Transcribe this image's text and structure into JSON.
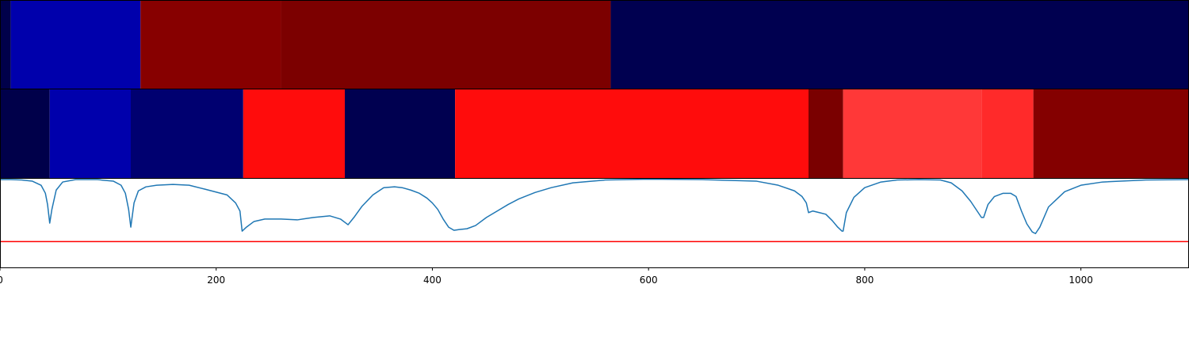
{
  "chart_data": [
    {
      "type": "heatmap",
      "xlim": [
        0,
        1100
      ],
      "segments": [
        {
          "start": 0,
          "end": 10,
          "color": "#00004a"
        },
        {
          "start": 10,
          "end": 130,
          "color": "#0000ac"
        },
        {
          "start": 130,
          "end": 260,
          "color": "#870000"
        },
        {
          "start": 260,
          "end": 565,
          "color": "#7c0000"
        },
        {
          "start": 565,
          "end": 1100,
          "color": "#000050"
        }
      ]
    },
    {
      "type": "heatmap",
      "xlim": [
        0,
        1100
      ],
      "segments": [
        {
          "start": 0,
          "end": 46,
          "color": "#00004a"
        },
        {
          "start": 46,
          "end": 121,
          "color": "#0000ac"
        },
        {
          "start": 121,
          "end": 225,
          "color": "#000070"
        },
        {
          "start": 225,
          "end": 319,
          "color": "#ff0c0c"
        },
        {
          "start": 319,
          "end": 421,
          "color": "#000050"
        },
        {
          "start": 421,
          "end": 748,
          "color": "#ff0c0c"
        },
        {
          "start": 748,
          "end": 780,
          "color": "#7a0000"
        },
        {
          "start": 780,
          "end": 908,
          "color": "#ff3838"
        },
        {
          "start": 908,
          "end": 956,
          "color": "#ff2a2a"
        },
        {
          "start": 956,
          "end": 1100,
          "color": "#840000"
        }
      ]
    },
    {
      "type": "line",
      "xlim": [
        0,
        1100
      ],
      "ylim": [
        -0.1,
        1.0
      ],
      "x": [
        0,
        10,
        20,
        30,
        38,
        42,
        44,
        46,
        48,
        52,
        58,
        70,
        90,
        105,
        112,
        116,
        119,
        121,
        124,
        128,
        135,
        145,
        160,
        175,
        190,
        210,
        218,
        222,
        224,
        228,
        235,
        245,
        260,
        275,
        290,
        305,
        315,
        322,
        328,
        335,
        345,
        355,
        365,
        372,
        380,
        388,
        395,
        400,
        405,
        410,
        415,
        420,
        425,
        432,
        440,
        450,
        460,
        470,
        480,
        495,
        510,
        530,
        560,
        600,
        650,
        700,
        720,
        735,
        742,
        746,
        748,
        752,
        758,
        764,
        770,
        775,
        779,
        780,
        783,
        790,
        800,
        815,
        830,
        850,
        870,
        880,
        890,
        898,
        904,
        908,
        910,
        914,
        920,
        928,
        935,
        940,
        945,
        950,
        955,
        958,
        962,
        970,
        985,
        1000,
        1020,
        1060,
        1100
      ],
      "y": [
        0.99,
        0.99,
        0.985,
        0.97,
        0.92,
        0.82,
        0.68,
        0.45,
        0.62,
        0.86,
        0.96,
        0.99,
        0.99,
        0.97,
        0.92,
        0.82,
        0.62,
        0.4,
        0.7,
        0.85,
        0.9,
        0.92,
        0.93,
        0.92,
        0.87,
        0.8,
        0.7,
        0.6,
        0.35,
        0.4,
        0.47,
        0.5,
        0.5,
        0.49,
        0.52,
        0.54,
        0.5,
        0.43,
        0.53,
        0.66,
        0.8,
        0.89,
        0.9,
        0.89,
        0.86,
        0.82,
        0.76,
        0.7,
        0.62,
        0.5,
        0.4,
        0.36,
        0.37,
        0.38,
        0.42,
        0.52,
        0.6,
        0.68,
        0.75,
        0.83,
        0.89,
        0.95,
        0.985,
        0.995,
        0.99,
        0.97,
        0.92,
        0.85,
        0.78,
        0.7,
        0.58,
        0.6,
        0.58,
        0.56,
        0.48,
        0.4,
        0.35,
        0.35,
        0.58,
        0.77,
        0.89,
        0.96,
        0.985,
        0.99,
        0.985,
        0.95,
        0.85,
        0.72,
        0.6,
        0.52,
        0.52,
        0.68,
        0.78,
        0.82,
        0.82,
        0.78,
        0.6,
        0.44,
        0.34,
        0.32,
        0.4,
        0.65,
        0.84,
        0.92,
        0.96,
        0.985,
        0.99
      ],
      "threshold": 0.22,
      "line_color": "#1f77b4",
      "threshold_color": "#ff0000",
      "xticks": [
        0,
        200,
        400,
        600,
        800,
        1000
      ]
    }
  ]
}
